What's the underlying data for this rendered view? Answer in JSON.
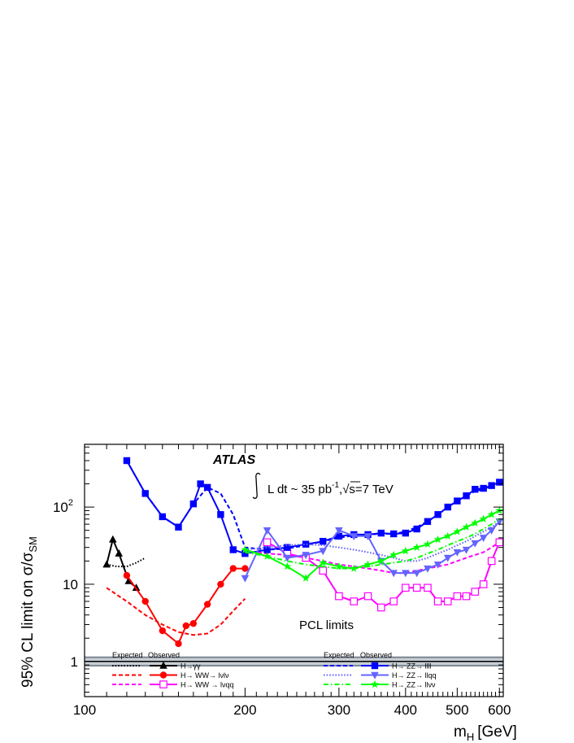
{
  "chart_data": {
    "type": "line",
    "title": "",
    "xlabel": "m",
    "xlabel_sub": "H",
    "xlabel_unit": "[GeV]",
    "ylabel": "95% CL limit on σ/σ",
    "ylabel_sub": "SM",
    "xscale": "log",
    "yscale": "log",
    "xlim": [
      100,
      610
    ],
    "ylim": [
      0.35,
      650
    ],
    "xticks": [
      {
        "value": 100,
        "label": "100"
      },
      {
        "value": 200,
        "label": "200"
      },
      {
        "value": 300,
        "label": "300"
      },
      {
        "value": 400,
        "label": "400"
      },
      {
        "value": 500,
        "label": "500"
      },
      {
        "value": 600,
        "label": "600"
      }
    ],
    "yticks": [
      {
        "value": 1,
        "label": "1"
      },
      {
        "value": 10,
        "label": "10"
      },
      {
        "value": 100,
        "label": "10",
        "sup": "2"
      }
    ],
    "annotations": {
      "experiment": "ATLAS",
      "lumi_prefix": "L dt ~ 35 pb",
      "lumi_sup": "-1",
      "lumi_suffix": "s=7 TeV",
      "method": "PCL limits"
    },
    "legend": {
      "expected_header": "Expected",
      "observed_header": "Observed",
      "placement": "bottom"
    },
    "sm_band": {
      "center": 1,
      "low": 0.86,
      "high": 1.16,
      "color": "#7f8a95",
      "line_color": "#000000"
    },
    "series": [
      {
        "name": "H→γγ",
        "color": "#000000",
        "marker": "triangle",
        "expected": {
          "x": [
            110,
            115,
            120,
            125,
            130
          ],
          "y": [
            18,
            17,
            17,
            19,
            22
          ]
        },
        "observed": {
          "x": [
            110,
            113,
            116,
            121,
            125
          ],
          "y": [
            18,
            38,
            25,
            11,
            9
          ]
        }
      },
      {
        "name": "H→ WW→ lνlν",
        "color": "#ff0000",
        "marker": "circle",
        "expected": {
          "x": [
            110,
            120,
            130,
            140,
            150,
            160,
            170,
            180,
            190,
            200
          ],
          "y": [
            9,
            6,
            4,
            3,
            2.4,
            2.2,
            2.3,
            3,
            4.5,
            6.5
          ]
        },
        "observed": {
          "x": [
            120,
            130,
            140,
            150,
            155,
            160,
            170,
            180,
            190,
            200
          ],
          "y": [
            13,
            6,
            2.5,
            1.7,
            2.9,
            3.1,
            5.5,
            10,
            16,
            16
          ]
        }
      },
      {
        "name": "H→ WW → lνqq",
        "color": "#ff00ff",
        "marker": "open-square",
        "expected": {
          "x": [
            200,
            220,
            240,
            260,
            280,
            300,
            320,
            340,
            360,
            380,
            400,
            420,
            440,
            460,
            480,
            500,
            520,
            540,
            560,
            580,
            600
          ],
          "y": [
            27,
            25,
            24,
            22,
            20,
            18,
            17,
            16,
            15,
            14,
            14,
            15,
            16,
            17,
            18,
            20,
            22,
            24,
            26,
            30,
            35
          ]
        },
        "observed": {
          "x": [
            220,
            240,
            260,
            280,
            300,
            320,
            340,
            360,
            380,
            400,
            420,
            440,
            460,
            480,
            500,
            520,
            540,
            560,
            580,
            600
          ],
          "y": [
            35,
            25,
            22,
            15,
            7,
            6,
            7,
            5,
            6,
            9,
            9,
            9,
            6,
            6,
            7,
            7,
            8,
            10,
            20,
            35
          ]
        }
      },
      {
        "name": "H→ ZZ→ llll",
        "color": "#0000ff",
        "marker": "square",
        "expected": {
          "x": [
            120,
            130,
            140,
            150,
            160,
            170,
            180,
            190,
            200,
            220,
            240,
            260,
            280,
            300,
            320,
            340,
            360,
            380,
            400,
            420,
            440,
            460,
            480,
            500,
            520,
            540,
            560,
            580,
            600
          ],
          "y": [
            400,
            150,
            75,
            55,
            110,
            180,
            150,
            80,
            30,
            28,
            29,
            32,
            36,
            40,
            43,
            44,
            45,
            45,
            48,
            55,
            65,
            80,
            100,
            120,
            140,
            160,
            170,
            190,
            210
          ]
        },
        "observed": {
          "x": [
            120,
            130,
            140,
            150,
            160,
            165,
            170,
            180,
            190,
            200,
            220,
            240,
            260,
            280,
            300,
            320,
            340,
            360,
            380,
            400,
            420,
            440,
            460,
            480,
            500,
            520,
            540,
            560,
            580,
            600
          ],
          "y": [
            400,
            150,
            75,
            55,
            110,
            200,
            180,
            80,
            28,
            25,
            28,
            30,
            33,
            36,
            42,
            44,
            44,
            46,
            45,
            46,
            52,
            65,
            80,
            100,
            120,
            140,
            170,
            175,
            190,
            210
          ]
        }
      },
      {
        "name": "H→ ZZ→ llqq",
        "color": "#6464ff",
        "marker": "triangle-down",
        "expected": {
          "x": [
            200,
            220,
            240,
            260,
            280,
            300,
            320,
            340,
            360,
            380,
            400,
            420,
            440,
            460,
            480,
            500,
            520,
            540,
            560,
            580,
            600
          ],
          "y": [
            28,
            30,
            32,
            33,
            32,
            30,
            28,
            26,
            24,
            22,
            20,
            20,
            22,
            25,
            28,
            32,
            36,
            42,
            48,
            55,
            65
          ]
        },
        "observed": {
          "x": [
            200,
            220,
            240,
            260,
            280,
            300,
            320,
            340,
            360,
            380,
            400,
            420,
            440,
            460,
            480,
            500,
            520,
            540,
            560,
            580,
            600
          ],
          "y": [
            12,
            50,
            22,
            24,
            27,
            50,
            42,
            42,
            20,
            14,
            14,
            14,
            16,
            18,
            22,
            26,
            28,
            34,
            40,
            50,
            65
          ]
        }
      },
      {
        "name": "H→ ZZ→ llνν",
        "color": "#00ff00",
        "marker": "star",
        "expected": {
          "x": [
            200,
            220,
            240,
            260,
            280,
            300,
            320,
            340,
            360,
            380,
            400,
            420,
            440,
            460,
            480,
            500,
            520,
            540,
            560,
            580,
            600
          ],
          "y": [
            26,
            23,
            20,
            18,
            17,
            16,
            16,
            17,
            18,
            19,
            20,
            22,
            25,
            28,
            32,
            36,
            40,
            45,
            52,
            60,
            70
          ]
        },
        "observed": {
          "x": [
            200,
            220,
            240,
            260,
            280,
            300,
            320,
            340,
            360,
            380,
            400,
            420,
            440,
            460,
            480,
            500,
            520,
            540,
            560,
            580,
            600
          ],
          "y": [
            28,
            23,
            17,
            12,
            19,
            17,
            16,
            18,
            20,
            24,
            27,
            30,
            33,
            38,
            42,
            48,
            55,
            62,
            70,
            80,
            90
          ]
        }
      }
    ]
  }
}
